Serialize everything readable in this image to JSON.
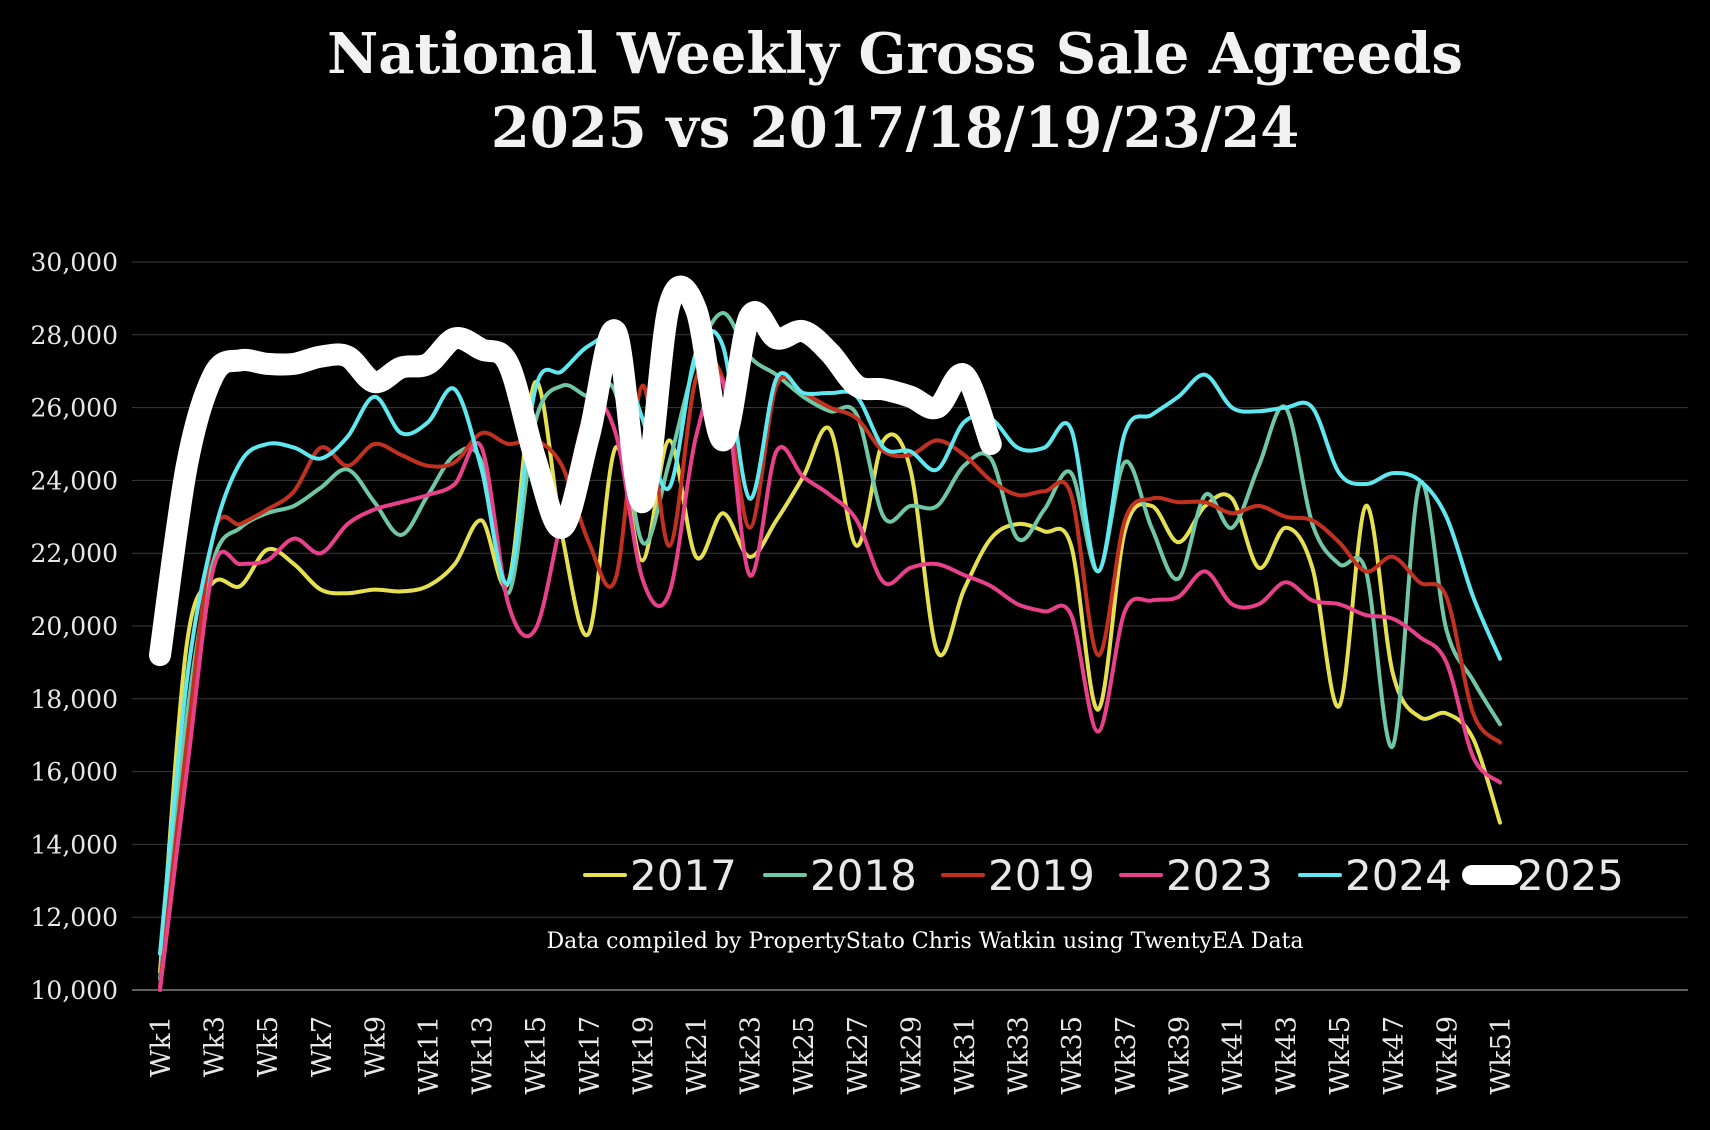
{
  "chart_data": {
    "type": "line",
    "title_line1": "National Weekly Gross Sale Agreeds",
    "title_line2": "2025 vs 2017/18/19/23/24",
    "source_note": "Data compiled by PropertyStato Chris Watkin using TwentyEA Data",
    "ylim": [
      10000,
      30000
    ],
    "y_ticks": [
      "10,000",
      "12,000",
      "14,000",
      "16,000",
      "18,000",
      "20,000",
      "22,000",
      "24,000",
      "26,000",
      "28,000",
      "30,000"
    ],
    "x_tick_labels": [
      "Wk1",
      "Wk3",
      "Wk5",
      "Wk7",
      "Wk9",
      "Wk11",
      "Wk13",
      "Wk15",
      "Wk17",
      "Wk19",
      "Wk21",
      "Wk23",
      "Wk25",
      "Wk27",
      "Wk29",
      "Wk31",
      "Wk33",
      "Wk35",
      "Wk37",
      "Wk39",
      "Wk41",
      "Wk43",
      "Wk45",
      "Wk47",
      "Wk49",
      "Wk51"
    ],
    "grid": "horizontal",
    "legend_position": "bottom-right inside plot",
    "series": [
      {
        "name": "2017",
        "color": "#e5e050",
        "width": 4,
        "values": [
          10500,
          19500,
          21200,
          21100,
          22100,
          21700,
          21000,
          20900,
          21000,
          20950,
          21100,
          21700,
          22900,
          21200,
          26700,
          22500,
          19800,
          24900,
          21800,
          25100,
          21900,
          23100,
          21900,
          22900,
          24100,
          25400,
          22200,
          25100,
          24300,
          19300,
          21000,
          22400,
          22800,
          22600,
          22200,
          17700,
          22600,
          23300,
          22300,
          23300,
          23500,
          21600,
          22700,
          21600,
          17800,
          23300,
          18700,
          17500,
          17600,
          16900,
          14600
        ]
      },
      {
        "name": "2018",
        "color": "#6fc7a6",
        "width": 4,
        "values": [
          10300,
          17500,
          21800,
          22700,
          23100,
          23300,
          23800,
          24300,
          23400,
          22500,
          23600,
          24700,
          24500,
          20900,
          25600,
          26600,
          26300,
          26400,
          22300,
          24500,
          27300,
          28600,
          27400,
          26900,
          26300,
          25900,
          25800,
          23000,
          23300,
          23300,
          24400,
          24600,
          22400,
          23200,
          24200,
          21500,
          24500,
          22700,
          21300,
          23600,
          22700,
          24400,
          26000,
          22800,
          21700,
          21500,
          16700,
          23900,
          19900,
          18500,
          17300
        ]
      },
      {
        "name": "2019",
        "color": "#c23020",
        "width": 4,
        "values": [
          10100,
          16800,
          22500,
          22800,
          23200,
          23700,
          24900,
          24400,
          25000,
          24700,
          24400,
          24500,
          25300,
          25000,
          25100,
          24400,
          22300,
          21300,
          26600,
          22200,
          26800,
          26800,
          22700,
          26600,
          26400,
          26000,
          25700,
          24800,
          24700,
          25100,
          24700,
          24000,
          23600,
          23700,
          23600,
          19200,
          22900,
          23500,
          23400,
          23400,
          23100,
          23300,
          23000,
          22900,
          22300,
          21500,
          21900,
          21200,
          20800,
          17600,
          16800
        ]
      },
      {
        "name": "2023",
        "color": "#e8408a",
        "width": 4,
        "values": [
          10000,
          16000,
          21600,
          21700,
          21800,
          22400,
          22000,
          22800,
          23200,
          23400,
          23600,
          23900,
          24900,
          20600,
          19900,
          23000,
          26000,
          25300,
          21300,
          20900,
          25200,
          26700,
          21400,
          24800,
          24100,
          23600,
          22900,
          21200,
          21600,
          21700,
          21400,
          21100,
          20600,
          20400,
          20300,
          17100,
          20400,
          20700,
          20800,
          21500,
          20600,
          20600,
          21200,
          20700,
          20600,
          20300,
          20200,
          19700,
          19000,
          16400,
          15700
        ]
      },
      {
        "name": "2024",
        "color": "#5fe8ef",
        "width": 4,
        "values": [
          11000,
          18500,
          22500,
          24500,
          25000,
          24900,
          24600,
          25200,
          26300,
          25300,
          25600,
          26500,
          24300,
          21200,
          26500,
          27000,
          27700,
          27800,
          25700,
          23800,
          27500,
          27700,
          23500,
          26800,
          26400,
          26400,
          26300,
          24900,
          24800,
          24300,
          25600,
          25700,
          24900,
          24900,
          25400,
          21500,
          25300,
          25800,
          26300,
          26900,
          26000,
          25900,
          26000,
          26000,
          24200,
          23900,
          24200,
          24000,
          23000,
          20800,
          19100
        ]
      },
      {
        "name": "2025",
        "color": "#ffffff",
        "width": 22,
        "values": [
          19200,
          24400,
          26900,
          27300,
          27200,
          27200,
          27400,
          27400,
          26700,
          27100,
          27200,
          27900,
          27600,
          27200,
          24600,
          22700,
          25200,
          28100,
          23400,
          28800,
          28700,
          25100,
          28500,
          27900,
          28100,
          27500,
          26600,
          26500,
          26300,
          26000,
          26900,
          25000
        ]
      }
    ]
  }
}
